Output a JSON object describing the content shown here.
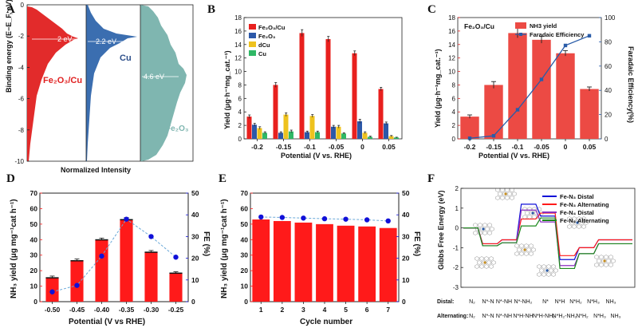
{
  "colors": {
    "fe2o3cu": "#e8201e",
    "fe2o3": "#2c58a8",
    "dcu": "#eec21e",
    "cu": "#2fb866",
    "red": "#ff1a1a",
    "blue": "#1010d8",
    "green": "#1c8a1c",
    "purple": "#8b2fc0",
    "panelA_red": "#e02020",
    "panelA_blue": "#3b6eb0",
    "panelA_teal": "#7fb6b0",
    "faradaic_blue": "#2a5ca8",
    "dark": "#222222"
  },
  "panel_labels": {
    "a": "A",
    "b": "B",
    "c": "C",
    "d": "D",
    "e": "E",
    "f": "F"
  },
  "chart_data": [
    {
      "id": "A",
      "type": "area",
      "title": "",
      "ylabel": "Binding energy (E−E_F, eV)",
      "xlabel": "Normalized Intensity",
      "ylim": [
        -10,
        0
      ],
      "yticks": [
        0,
        -2,
        -4,
        -6,
        -8,
        -10
      ],
      "series": [
        {
          "name": "Fe2O3/Cu",
          "label": "Fe₂O₃/Cu",
          "center": "2 eV",
          "center_value": -2.0
        },
        {
          "name": "Cu",
          "label": "Cu",
          "center": "2.2 eV",
          "center_value": -2.2
        },
        {
          "name": "Fe2O3",
          "label": "Fe₂O₃",
          "center": "4.6 eV",
          "center_value": -4.6
        }
      ]
    },
    {
      "id": "B",
      "type": "bar",
      "xlabel": "Potential (V vs. RHE)",
      "ylabel": "Yield (μg·h⁻¹mg_cat.⁻¹)",
      "categories": [
        "-0.2",
        "-0.15",
        "-0.1",
        "-0.05",
        "0",
        "0.05"
      ],
      "ylim": [
        0,
        18
      ],
      "yticks": [
        0,
        2,
        4,
        6,
        8,
        10,
        12,
        14,
        16,
        18
      ],
      "legend_title_unused": "",
      "series": [
        {
          "name": "Fe₂O₃/Cu",
          "values": [
            3.3,
            8.0,
            15.7,
            14.8,
            12.7,
            7.4
          ],
          "err": [
            0.25,
            0.35,
            0.5,
            0.4,
            0.35,
            0.25
          ]
        },
        {
          "name": "Fe₂O₃",
          "values": [
            2.1,
            0.9,
            1.0,
            1.8,
            2.6,
            2.3
          ],
          "err": [
            0.2,
            0.15,
            0.15,
            0.2,
            0.3,
            0.2
          ]
        },
        {
          "name": "dCu",
          "values": [
            1.6,
            3.6,
            3.4,
            1.8,
            0.9,
            0.4
          ],
          "err": [
            0.2,
            0.25,
            0.2,
            0.2,
            0.15,
            0.1
          ]
        },
        {
          "name": "Cu",
          "values": [
            0.9,
            1.1,
            1.0,
            0.8,
            0.3,
            0.2
          ],
          "err": [
            0.15,
            0.2,
            0.15,
            0.1,
            0.1,
            0.05
          ]
        }
      ]
    },
    {
      "id": "C",
      "type": "bar",
      "annotation": "Fe₂O₃/Cu",
      "xlabel": "Potential (V vs. RHE)",
      "ylabel": "Yield (μg·h⁻¹mg_cat.⁻¹)",
      "ylabel2": "Faradaic Efficiency(%)",
      "categories": [
        "-0.2",
        "-0.15",
        "-0.1",
        "-0.05",
        "0",
        "0.05"
      ],
      "ylim": [
        0,
        18
      ],
      "yticks": [
        0,
        2,
        4,
        6,
        8,
        10,
        12,
        14,
        16,
        18
      ],
      "y2lim": [
        0,
        100
      ],
      "y2ticks": [
        0,
        20,
        40,
        60,
        80,
        100
      ],
      "series": [
        {
          "name": "NH3 yield",
          "values": [
            3.3,
            8.0,
            15.7,
            14.7,
            12.7,
            7.4
          ],
          "err": [
            0.25,
            0.5,
            0.7,
            0.5,
            0.4,
            0.3
          ]
        },
        {
          "name": "Faradaic Efficiency",
          "values": [
            0.5,
            2.5,
            24,
            49,
            77,
            85
          ],
          "err": [
            0,
            0,
            0,
            0,
            3,
            2
          ]
        }
      ]
    },
    {
      "id": "D",
      "type": "bar",
      "xlabel": "Potential (V vs RHE)",
      "ylabel": "NH₃ yield (μg mg⁻¹cat h⁻¹)",
      "ylabel2": "FE (%)",
      "categories": [
        "-0.50",
        "-0.45",
        "-0.40",
        "-0.35",
        "-0.30",
        "-0.25"
      ],
      "ylim": [
        0,
        70
      ],
      "yticks": [
        0,
        10,
        20,
        30,
        40,
        50,
        60,
        70
      ],
      "y2lim": [
        0,
        50
      ],
      "y2ticks": [
        0,
        10,
        20,
        30,
        40,
        50
      ],
      "series": [
        {
          "name": "NH3 yield",
          "values": [
            15.5,
            26.5,
            40.0,
            53.0,
            32.0,
            18.5
          ],
          "err": [
            1.0,
            1.0,
            1.0,
            1.2,
            1.0,
            0.8
          ]
        },
        {
          "name": "FE",
          "values": [
            4.5,
            7.5,
            21.0,
            38.0,
            30.0,
            20.5
          ]
        }
      ]
    },
    {
      "id": "E",
      "type": "bar",
      "xlabel": "Cycle number",
      "ylabel": "NH₃ yield (μg mg⁻¹cat h⁻¹)",
      "ylabel2": "FE (%)",
      "categories": [
        "1",
        "2",
        "3",
        "4",
        "5",
        "6",
        "7"
      ],
      "ylim": [
        0,
        70
      ],
      "yticks": [
        0,
        10,
        20,
        30,
        40,
        50,
        60,
        70
      ],
      "y2lim": [
        0,
        50
      ],
      "y2ticks": [
        0,
        10,
        20,
        30,
        40,
        50
      ],
      "series": [
        {
          "name": "NH3 yield",
          "values": [
            53.0,
            52.0,
            51.0,
            50.0,
            49.0,
            48.5,
            47.5
          ]
        },
        {
          "name": "FE",
          "values": [
            39.0,
            38.8,
            38.5,
            38.2,
            38.0,
            37.7,
            37.2
          ]
        }
      ]
    },
    {
      "id": "F",
      "type": "line",
      "ylabel": "Gibbs Free Energy (eV)",
      "ylim": [
        -3,
        2
      ],
      "yticks": [
        2,
        1,
        0,
        -1,
        -2,
        -3
      ],
      "distal_label": "Distal:",
      "alternating_label": "Alternating:",
      "distal_steps": [
        "N₂",
        "N*-N",
        "N*-NH",
        "N*-NH₂",
        "N*",
        "N*H",
        "N*H₂",
        "N*H₃",
        "NH₃"
      ],
      "alternating_steps": [
        "N₂",
        "N*-N",
        "N*-NH",
        "N*H-NH",
        "N*H-NH₂",
        "N*H₂-NH₂",
        "N*H₂",
        "N*H₃",
        "NH₃"
      ],
      "series": [
        {
          "name": "Fe-N₃ Distal",
          "values": [
            0,
            -0.8,
            -0.6,
            1.2,
            0.6,
            -1.6,
            -1.0,
            -0.6,
            -0.6
          ]
        },
        {
          "name": "Fe-N₃ Alternating",
          "values": [
            0,
            -0.8,
            -0.6,
            0.45,
            0.75,
            -1.4,
            -1.0,
            -0.6,
            -0.6
          ]
        },
        {
          "name": "Fe-N₄ Distal",
          "values": [
            0,
            -0.9,
            -0.75,
            0.9,
            0.3,
            -1.9,
            -1.3,
            -0.8,
            -0.8
          ]
        },
        {
          "name": "Fe-N₄ Alternating",
          "values": [
            0,
            -0.9,
            -0.75,
            0.1,
            0.5,
            -2.05,
            -1.3,
            -0.8,
            -0.8
          ]
        }
      ]
    }
  ]
}
